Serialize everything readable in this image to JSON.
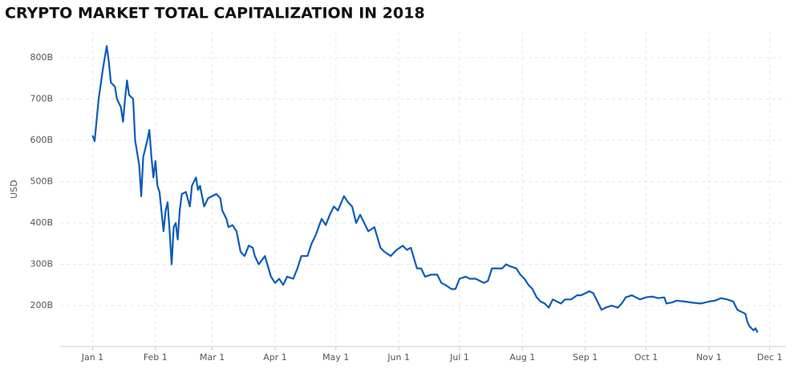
{
  "chart_data": {
    "type": "line",
    "title": "CRYPTO MARKET TOTAL CAPITALIZATION IN 2018",
    "y_label": "USD",
    "x": [
      "2018-01-01",
      "2018-01-02",
      "2018-01-04",
      "2018-01-06",
      "2018-01-07",
      "2018-01-08",
      "2018-01-09",
      "2018-01-10",
      "2018-01-12",
      "2018-01-13",
      "2018-01-15",
      "2018-01-16",
      "2018-01-17",
      "2018-01-18",
      "2018-01-19",
      "2018-01-21",
      "2018-01-22",
      "2018-01-24",
      "2018-01-25",
      "2018-01-26",
      "2018-01-28",
      "2018-01-29",
      "2018-01-30",
      "2018-01-31",
      "2018-02-01",
      "2018-02-02",
      "2018-02-03",
      "2018-02-05",
      "2018-02-06",
      "2018-02-07",
      "2018-02-08",
      "2018-02-09",
      "2018-02-10",
      "2018-02-11",
      "2018-02-12",
      "2018-02-13",
      "2018-02-14",
      "2018-02-16",
      "2018-02-18",
      "2018-02-19",
      "2018-02-21",
      "2018-02-22",
      "2018-02-23",
      "2018-02-25",
      "2018-02-27",
      "2018-03-01",
      "2018-03-03",
      "2018-03-05",
      "2018-03-06",
      "2018-03-08",
      "2018-03-09",
      "2018-03-11",
      "2018-03-13",
      "2018-03-15",
      "2018-03-17",
      "2018-03-19",
      "2018-03-21",
      "2018-03-22",
      "2018-03-24",
      "2018-03-27",
      "2018-03-30",
      "2018-04-01",
      "2018-04-03",
      "2018-04-05",
      "2018-04-07",
      "2018-04-10",
      "2018-04-12",
      "2018-04-14",
      "2018-04-17",
      "2018-04-19",
      "2018-04-21",
      "2018-04-24",
      "2018-04-26",
      "2018-04-28",
      "2018-04-30",
      "2018-05-02",
      "2018-05-05",
      "2018-05-07",
      "2018-05-09",
      "2018-05-11",
      "2018-05-13",
      "2018-05-15",
      "2018-05-17",
      "2018-05-20",
      "2018-05-23",
      "2018-05-25",
      "2018-05-28",
      "2018-05-31",
      "2018-06-03",
      "2018-06-05",
      "2018-06-07",
      "2018-06-10",
      "2018-06-12",
      "2018-06-14",
      "2018-06-17",
      "2018-06-20",
      "2018-06-22",
      "2018-06-24",
      "2018-06-27",
      "2018-06-29",
      "2018-07-01",
      "2018-07-04",
      "2018-07-06",
      "2018-07-09",
      "2018-07-11",
      "2018-07-13",
      "2018-07-15",
      "2018-07-17",
      "2018-07-20",
      "2018-07-22",
      "2018-07-24",
      "2018-07-26",
      "2018-07-29",
      "2018-07-31",
      "2018-08-02",
      "2018-08-04",
      "2018-08-06",
      "2018-08-08",
      "2018-08-10",
      "2018-08-12",
      "2018-08-14",
      "2018-08-16",
      "2018-08-18",
      "2018-08-20",
      "2018-08-22",
      "2018-08-25",
      "2018-08-28",
      "2018-08-30",
      "2018-09-01",
      "2018-09-03",
      "2018-09-05",
      "2018-09-07",
      "2018-09-09",
      "2018-09-11",
      "2018-09-14",
      "2018-09-17",
      "2018-09-19",
      "2018-09-21",
      "2018-09-24",
      "2018-09-26",
      "2018-09-28",
      "2018-10-01",
      "2018-10-04",
      "2018-10-07",
      "2018-10-10",
      "2018-10-11",
      "2018-10-14",
      "2018-10-16",
      "2018-10-20",
      "2018-10-24",
      "2018-10-28",
      "2018-11-01",
      "2018-11-04",
      "2018-11-07",
      "2018-11-10",
      "2018-11-13",
      "2018-11-15",
      "2018-11-17",
      "2018-11-19",
      "2018-11-20",
      "2018-11-21",
      "2018-11-23",
      "2018-11-24",
      "2018-11-25"
    ],
    "series": [
      {
        "name": "Total capitalization",
        "color": "#0b5cb8",
        "values": [
          612000000000.0,
          598000000000.0,
          700000000000.0,
          770000000000.0,
          800000000000.0,
          828000000000.0,
          790000000000.0,
          740000000000.0,
          730000000000.0,
          700000000000.0,
          680000000000.0,
          645000000000.0,
          700000000000.0,
          745000000000.0,
          710000000000.0,
          700000000000.0,
          600000000000.0,
          540000000000.0,
          465000000000.0,
          560000000000.0,
          600000000000.0,
          625000000000.0,
          560000000000.0,
          510000000000.0,
          550000000000.0,
          490000000000.0,
          475000000000.0,
          380000000000.0,
          430000000000.0,
          450000000000.0,
          380000000000.0,
          300000000000.0,
          390000000000.0,
          400000000000.0,
          360000000000.0,
          430000000000.0,
          470000000000.0,
          475000000000.0,
          440000000000.0,
          490000000000.0,
          510000000000.0,
          480000000000.0,
          490000000000.0,
          440000000000.0,
          460000000000.0,
          465000000000.0,
          470000000000.0,
          460000000000.0,
          430000000000.0,
          410000000000.0,
          390000000000.0,
          395000000000.0,
          380000000000.0,
          330000000000.0,
          320000000000.0,
          345000000000.0,
          340000000000.0,
          320000000000.0,
          300000000000.0,
          320000000000.0,
          270000000000.0,
          255000000000.0,
          265000000000.0,
          250000000000.0,
          270000000000.0,
          265000000000.0,
          290000000000.0,
          320000000000.0,
          320000000000.0,
          350000000000.0,
          370000000000.0,
          410000000000.0,
          395000000000.0,
          420000000000.0,
          440000000000.0,
          430000000000.0,
          465000000000.0,
          450000000000.0,
          440000000000.0,
          400000000000.0,
          420000000000.0,
          400000000000.0,
          380000000000.0,
          390000000000.0,
          340000000000.0,
          330000000000.0,
          320000000000.0,
          335000000000.0,
          345000000000.0,
          335000000000.0,
          340000000000.0,
          290000000000.0,
          290000000000.0,
          270000000000.0,
          275000000000.0,
          275000000000.0,
          255000000000.0,
          250000000000.0,
          240000000000.0,
          240000000000.0,
          265000000000.0,
          270000000000.0,
          265000000000.0,
          265000000000.0,
          260000000000.0,
          255000000000.0,
          260000000000.0,
          290000000000.0,
          290000000000.0,
          290000000000.0,
          300000000000.0,
          295000000000.0,
          290000000000.0,
          275000000000.0,
          265000000000.0,
          250000000000.0,
          240000000000.0,
          220000000000.0,
          210000000000.0,
          205000000000.0,
          195000000000.0,
          215000000000.0,
          210000000000.0,
          205000000000.0,
          215000000000.0,
          215000000000.0,
          225000000000.0,
          225000000000.0,
          230000000000.0,
          235000000000.0,
          230000000000.0,
          210000000000.0,
          190000000000.0,
          195000000000.0,
          200000000000.0,
          195000000000.0,
          205000000000.0,
          220000000000.0,
          225000000000.0,
          220000000000.0,
          215000000000.0,
          220000000000.0,
          222000000000.0,
          218000000000.0,
          220000000000.0,
          205000000000.0,
          208000000000.0,
          212000000000.0,
          210000000000.0,
          207000000000.0,
          205000000000.0,
          210000000000.0,
          212000000000.0,
          218000000000.0,
          215000000000.0,
          210000000000.0,
          190000000000.0,
          185000000000.0,
          180000000000.0,
          160000000000.0,
          150000000000.0,
          140000000000.0,
          145000000000.0,
          135000000000.0
        ]
      }
    ],
    "xlim": [
      "2017-12-16",
      "2018-12-09"
    ],
    "xticks": [
      {
        "value": "2018-01-01",
        "label": "Jan 1"
      },
      {
        "value": "2018-02-01",
        "label": "Feb 1"
      },
      {
        "value": "2018-03-01",
        "label": "Mar 1"
      },
      {
        "value": "2018-04-01",
        "label": "Apr 1"
      },
      {
        "value": "2018-05-01",
        "label": "May 1"
      },
      {
        "value": "2018-06-01",
        "label": "Jun 1"
      },
      {
        "value": "2018-07-01",
        "label": "Jul 1"
      },
      {
        "value": "2018-08-01",
        "label": "Aug 1"
      },
      {
        "value": "2018-09-01",
        "label": "Sep 1"
      },
      {
        "value": "2018-10-01",
        "label": "Oct 1"
      },
      {
        "value": "2018-11-01",
        "label": "Nov 1"
      },
      {
        "value": "2018-12-01",
        "label": "Dec 1"
      }
    ],
    "ylim": [
      101000000000.0,
      862000000000.0
    ],
    "yticks": [
      {
        "value": 200000000000.0,
        "label": "200B"
      },
      {
        "value": 300000000000.0,
        "label": "300B"
      },
      {
        "value": 400000000000.0,
        "label": "400B"
      },
      {
        "value": 500000000000.0,
        "label": "500B"
      },
      {
        "value": 600000000000.0,
        "label": "600B"
      },
      {
        "value": 700000000000.0,
        "label": "700B"
      },
      {
        "value": 800000000000.0,
        "label": "800B"
      }
    ],
    "grid": true
  }
}
